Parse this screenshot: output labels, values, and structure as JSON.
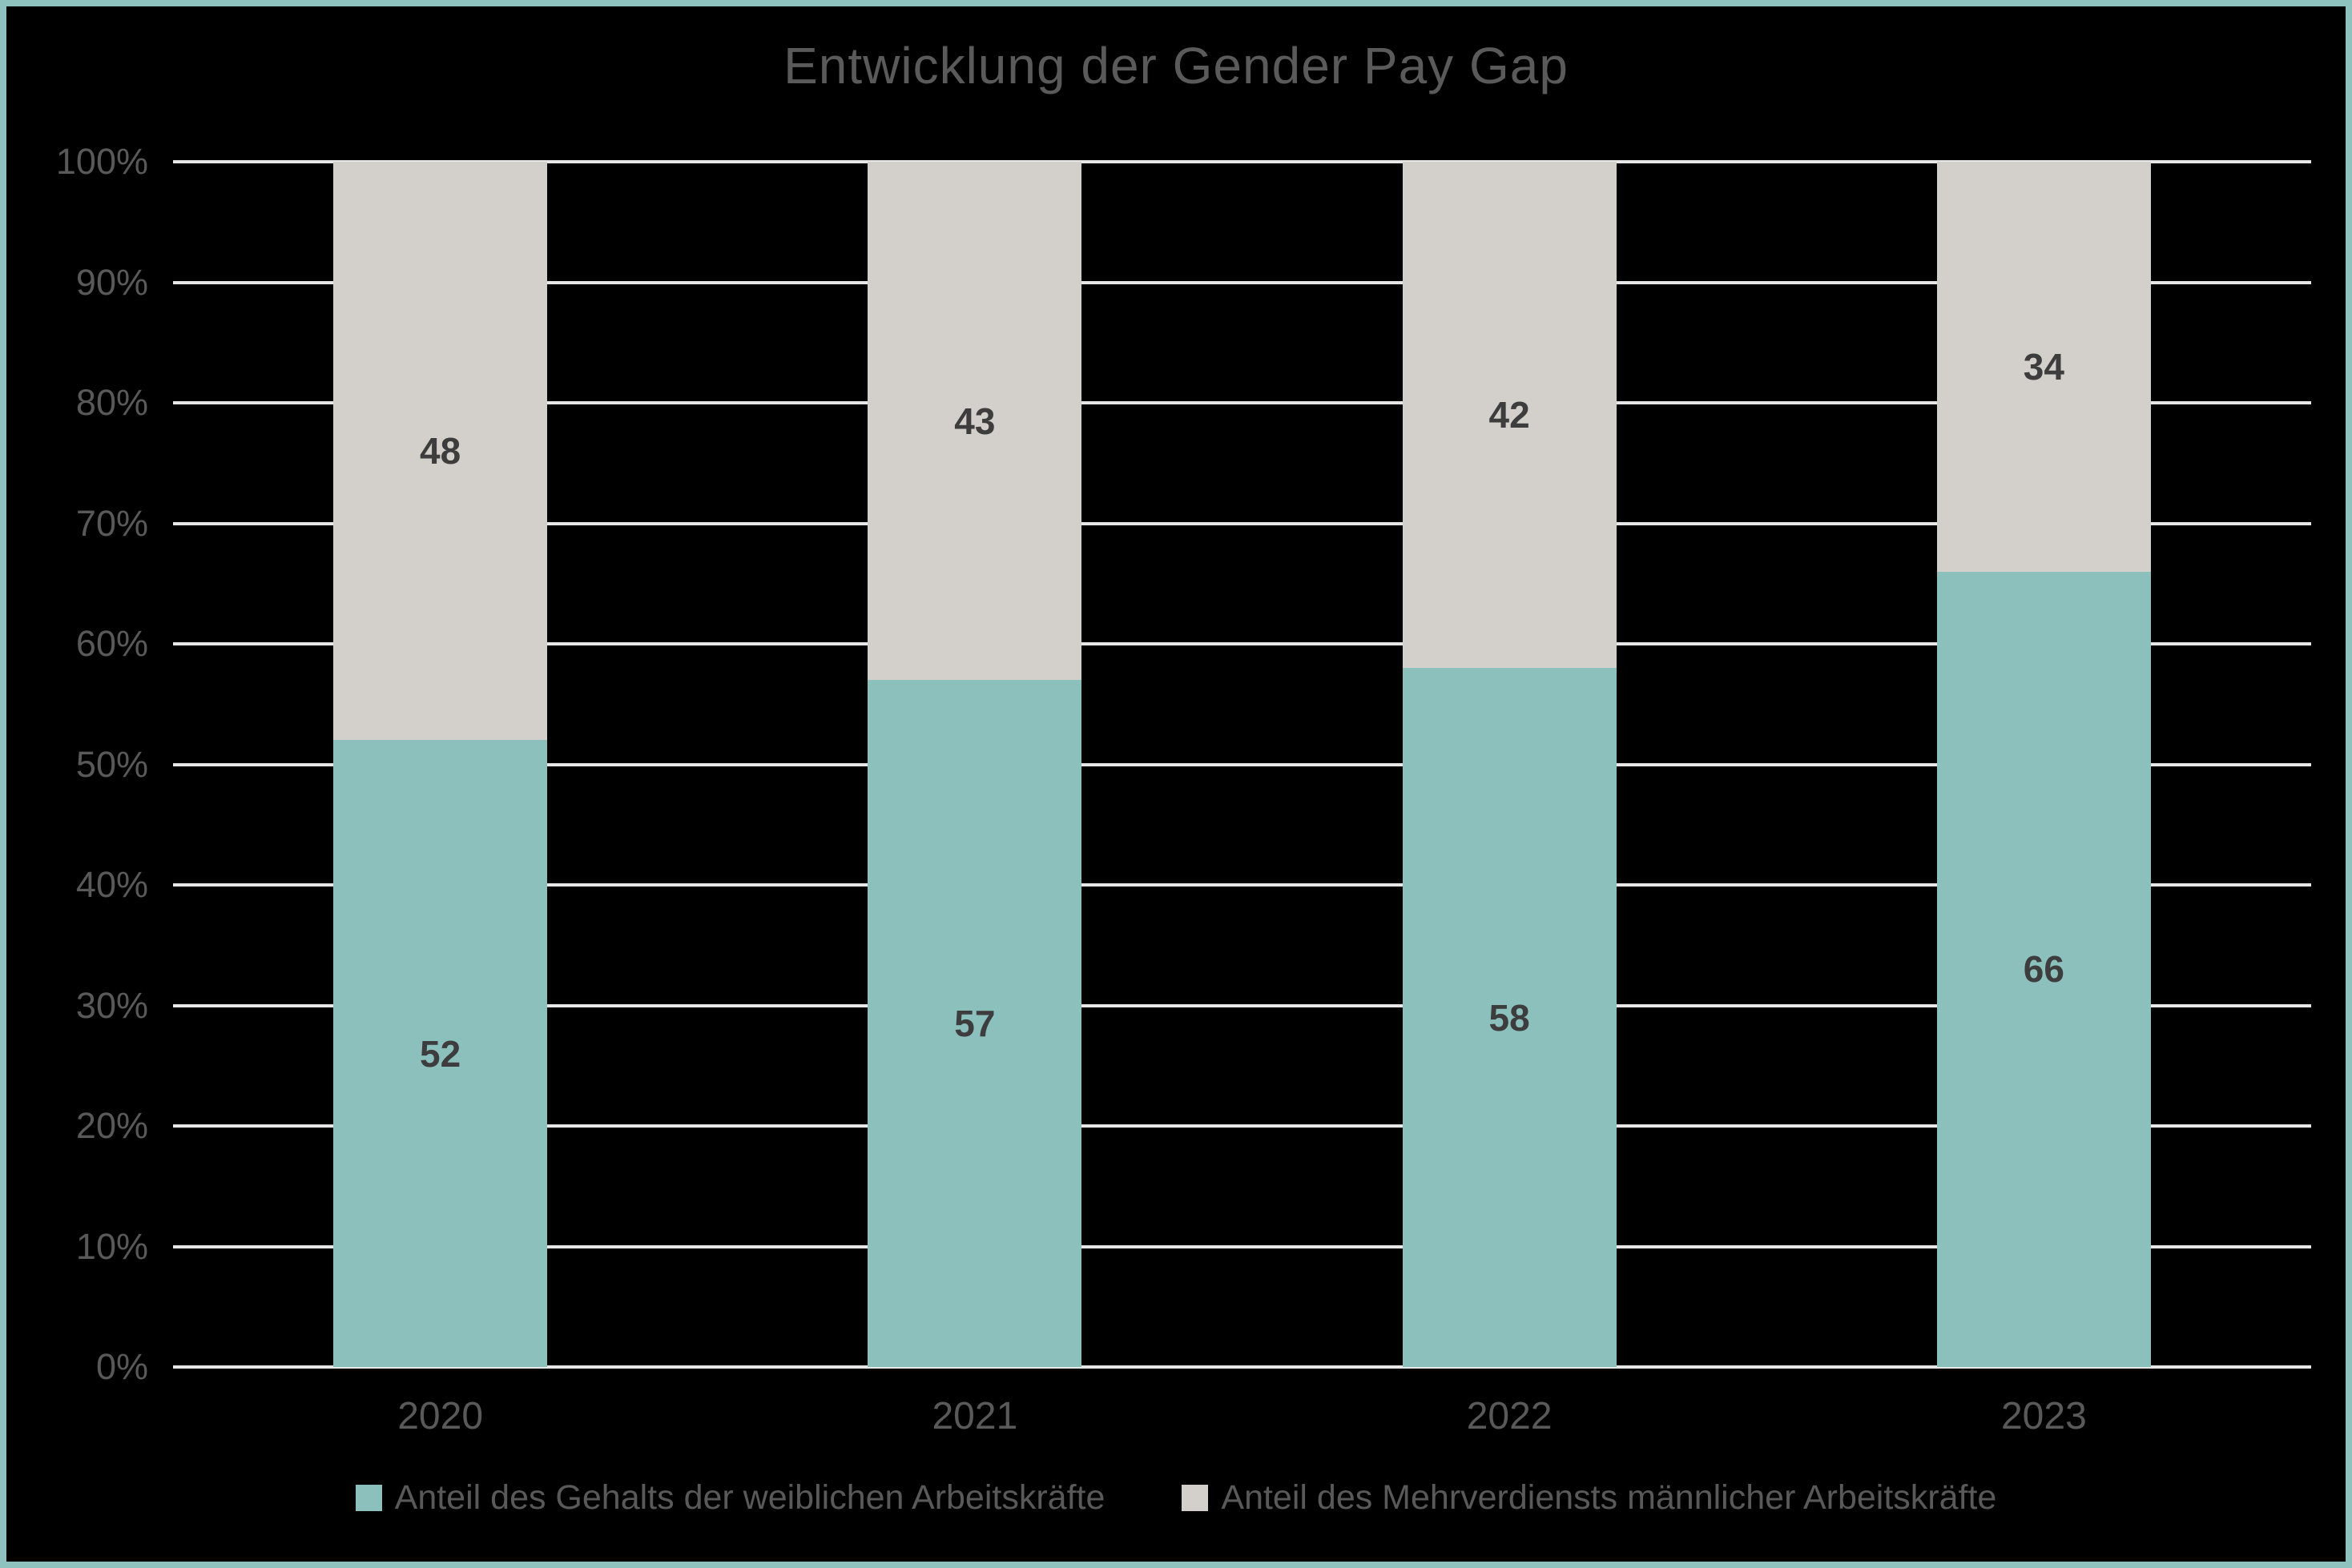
{
  "title": "Entwicklung der Gender Pay Gap",
  "colors": {
    "background": "#000000",
    "frame_border": "#8ec2be",
    "gridline": "#e7e7e7",
    "axis_text": "#595959",
    "title_text": "#5a5a5a",
    "data_label_text": "#3d3d3d",
    "series_female": "#8bc0bd",
    "series_male": "#d3cfcb"
  },
  "chart_data": {
    "type": "bar",
    "stacked": true,
    "title": "Entwicklung der Gender Pay Gap",
    "categories": [
      "2020",
      "2021",
      "2022",
      "2023"
    ],
    "series": [
      {
        "name": "Anteil des Gehalts der weiblichen Arbeitskräfte",
        "color": "#8bc0bd",
        "values": [
          52,
          57,
          58,
          66
        ]
      },
      {
        "name": "Anteil des Mehrverdiensts männlicher Arbeitskräfte",
        "color": "#d3cfcb",
        "values": [
          48,
          43,
          42,
          34
        ]
      }
    ],
    "xlabel": "",
    "ylabel": "",
    "ylim": [
      0,
      100
    ],
    "ytick_step": 10,
    "ytick_labels": [
      "0%",
      "10%",
      "20%",
      "30%",
      "40%",
      "50%",
      "60%",
      "70%",
      "80%",
      "90%",
      "100%"
    ],
    "grid": true,
    "legend_position": "bottom"
  }
}
